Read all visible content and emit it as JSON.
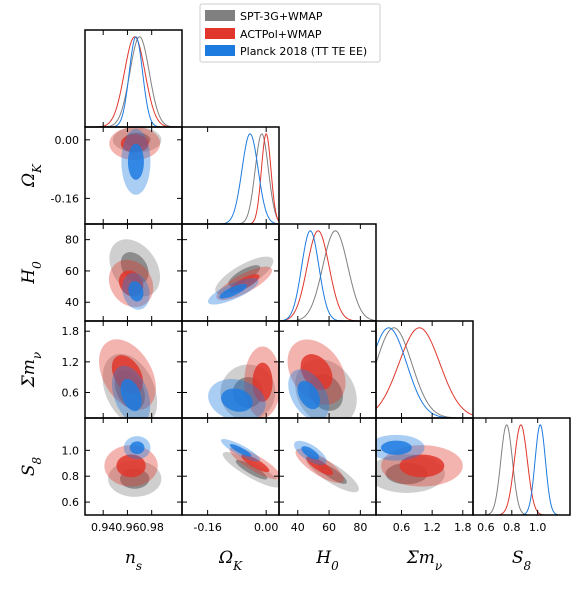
{
  "chart_data": {
    "type": "triangle-corner",
    "legend": {
      "placement": "top-center",
      "entries": [
        {
          "name": "SPT-3G+WMAP",
          "color": "#808080"
        },
        {
          "name": "ACTPol+WMAP",
          "color": "#e0362b"
        },
        {
          "name": "Planck 2018 (TT TE EE)",
          "color": "#1d7be0"
        }
      ]
    },
    "parameters": [
      {
        "key": "ns",
        "symbol": "n",
        "sub": "s",
        "range": [
          0.925,
          1.005
        ],
        "ticks": [
          0.94,
          0.96,
          0.98
        ],
        "tick_labels": [
          "0.94",
          "0.96",
          "0.98"
        ]
      },
      {
        "key": "ok",
        "symbol": "Ω",
        "sub": "K",
        "range": [
          -0.23,
          0.035
        ],
        "ticks": [
          -0.16,
          0.0
        ],
        "tick_labels": [
          "-0.16",
          "0.00"
        ]
      },
      {
        "key": "h0",
        "symbol": "H",
        "sub": "0",
        "range": [
          28,
          90
        ],
        "ticks": [
          40,
          60,
          80
        ],
        "tick_labels": [
          "40",
          "60",
          "80"
        ]
      },
      {
        "key": "mnu",
        "symbol": "Σm",
        "sub": "ν",
        "range": [
          0.1,
          2.0
        ],
        "ticks": [
          0.6,
          1.2,
          1.8
        ],
        "tick_labels": [
          "0.6",
          "1.2",
          "1.8"
        ]
      },
      {
        "key": "s8",
        "symbol": "S",
        "sub": "8",
        "range": [
          0.5,
          1.25
        ],
        "ticks": [
          0.6,
          0.8,
          1.0
        ],
        "tick_labels": [
          "0.6",
          "0.8",
          "1.0"
        ]
      }
    ],
    "x_tick_labels_bottom": [
      [
        "0.94",
        "0.96",
        "0.98"
      ],
      [
        "-0.16",
        "0.00"
      ],
      [
        "40",
        "60",
        "80"
      ],
      [
        "0.6",
        "1.2",
        "1.8"
      ],
      [
        "0.6",
        "0.8",
        "1.0"
      ]
    ],
    "y_tick_labels_left": {
      "ok": [
        "0.00",
        "-0.16"
      ],
      "h0": [
        "80",
        "60",
        "40"
      ],
      "mnu": [
        "1.8",
        "1.2",
        "0.6"
      ],
      "s8": [
        "1.0",
        "0.8",
        "0.6"
      ]
    },
    "marginals": {
      "ns": {
        "SPT-3G+WMAP": {
          "mean": 0.97,
          "sd": 0.008
        },
        "ACTPol+WMAP": {
          "mean": 0.966,
          "sd": 0.0085
        },
        "Planck 2018 (TT TE EE)": {
          "mean": 0.967,
          "sd": 0.0055
        }
      },
      "ok": {
        "SPT-3G+WMAP": {
          "mean": -0.012,
          "sd": 0.018
        },
        "ACTPol+WMAP": {
          "mean": 0.0,
          "sd": 0.013
        },
        "Planck 2018 (TT TE EE)": {
          "mean": -0.044,
          "sd": 0.022
        }
      },
      "h0": {
        "SPT-3G+WMAP": {
          "mean": 64,
          "sd": 8
        },
        "ACTPol+WMAP": {
          "mean": 53,
          "sd": 7
        },
        "Planck 2018 (TT TE EE)": {
          "mean": 48,
          "sd": 5.5
        }
      },
      "mnu": {
        "SPT-3G+WMAP": {
          "mean": 0.45,
          "sd": 0.35
        },
        "ACTPol+WMAP": {
          "mean": 0.95,
          "sd": 0.4
        },
        "Planck 2018 (TT TE EE)": {
          "mean": 0.35,
          "sd": 0.35
        }
      },
      "s8": {
        "SPT-3G+WMAP": {
          "mean": 0.76,
          "sd": 0.045
        },
        "ACTPol+WMAP": {
          "mean": 0.87,
          "sd": 0.05
        },
        "Planck 2018 (TT TE EE)": {
          "mean": 1.02,
          "sd": 0.04
        }
      }
    },
    "contours": [
      {
        "row": "ok",
        "col": "ns",
        "series": [
          {
            "name": "SPT-3G+WMAP",
            "cx": 0.968,
            "cy": 0.0,
            "rx": 0.02,
            "ry": 0.035,
            "rot": 0
          },
          {
            "name": "ACTPol+WMAP",
            "cx": 0.966,
            "cy": -0.01,
            "rx": 0.021,
            "ry": 0.045,
            "rot": 0
          },
          {
            "name": "Planck 2018 (TT TE EE)",
            "cx": 0.967,
            "cy": -0.06,
            "rx": 0.012,
            "ry": 0.09,
            "rot": 0
          }
        ]
      },
      {
        "row": "h0",
        "col": "ns",
        "series": [
          {
            "name": "SPT-3G+WMAP",
            "cx": 0.966,
            "cy": 62,
            "rx": 0.018,
            "ry": 20,
            "rot": -35
          },
          {
            "name": "ACTPol+WMAP",
            "cx": 0.963,
            "cy": 52,
            "rx": 0.017,
            "ry": 16,
            "rot": -35
          },
          {
            "name": "Planck 2018 (TT TE EE)",
            "cx": 0.967,
            "cy": 47,
            "rx": 0.011,
            "ry": 12,
            "rot": -15
          }
        ]
      },
      {
        "row": "h0",
        "col": "ok",
        "series": [
          {
            "name": "SPT-3G+WMAP",
            "cx": -0.06,
            "cy": 57,
            "rx": 0.09,
            "ry": 7,
            "rot": -30
          },
          {
            "name": "ACTPol+WMAP",
            "cx": -0.06,
            "cy": 52,
            "rx": 0.085,
            "ry": 6,
            "rot": -28
          },
          {
            "name": "Planck 2018 (TT TE EE)",
            "cx": -0.09,
            "cy": 47,
            "rx": 0.075,
            "ry": 5,
            "rot": -24
          }
        ]
      },
      {
        "row": "mnu",
        "col": "ns",
        "series": [
          {
            "name": "SPT-3G+WMAP",
            "cx": 0.962,
            "cy": 0.65,
            "rx": 0.02,
            "ry": 0.75,
            "rot": -25
          },
          {
            "name": "ACTPol+WMAP",
            "cx": 0.96,
            "cy": 0.95,
            "rx": 0.02,
            "ry": 0.75,
            "rot": -30
          },
          {
            "name": "Planck 2018 (TT TE EE)",
            "cx": 0.963,
            "cy": 0.55,
            "rx": 0.014,
            "ry": 0.6,
            "rot": -20
          }
        ]
      },
      {
        "row": "mnu",
        "col": "ok",
        "series": [
          {
            "name": "SPT-3G+WMAP",
            "cx": -0.05,
            "cy": 0.6,
            "rx": 0.075,
            "ry": 0.55,
            "rot": 20
          },
          {
            "name": "ACTPol+WMAP",
            "cx": -0.01,
            "cy": 0.8,
            "rx": 0.05,
            "ry": 0.7,
            "rot": 0
          },
          {
            "name": "Planck 2018 (TT TE EE)",
            "cx": -0.08,
            "cy": 0.45,
            "rx": 0.08,
            "ry": 0.4,
            "rot": 15
          }
        ]
      },
      {
        "row": "mnu",
        "col": "h0",
        "series": [
          {
            "name": "SPT-3G+WMAP",
            "cx": 58,
            "cy": 0.6,
            "rx": 18,
            "ry": 0.7,
            "rot": -35
          },
          {
            "name": "ACTPol+WMAP",
            "cx": 52,
            "cy": 1.0,
            "rx": 16,
            "ry": 0.7,
            "rot": -35
          },
          {
            "name": "Planck 2018 (TT TE EE)",
            "cx": 47,
            "cy": 0.55,
            "rx": 11,
            "ry": 0.55,
            "rot": -30
          }
        ]
      },
      {
        "row": "s8",
        "col": "ns",
        "series": [
          {
            "name": "SPT-3G+WMAP",
            "cx": 0.966,
            "cy": 0.78,
            "rx": 0.022,
            "ry": 0.14,
            "rot": 0
          },
          {
            "name": "ACTPol+WMAP",
            "cx": 0.963,
            "cy": 0.88,
            "rx": 0.022,
            "ry": 0.16,
            "rot": 0
          },
          {
            "name": "Planck 2018 (TT TE EE)",
            "cx": 0.968,
            "cy": 1.02,
            "rx": 0.011,
            "ry": 0.09,
            "rot": 0
          }
        ]
      },
      {
        "row": "s8",
        "col": "ok",
        "series": [
          {
            "name": "SPT-3G+WMAP",
            "cx": -0.04,
            "cy": 0.85,
            "rx": 0.09,
            "ry": 0.06,
            "rot": 30
          },
          {
            "name": "ACTPol+WMAP",
            "cx": -0.03,
            "cy": 0.9,
            "rx": 0.08,
            "ry": 0.06,
            "rot": 30
          },
          {
            "name": "Planck 2018 (TT TE EE)",
            "cx": -0.07,
            "cy": 1.0,
            "rx": 0.06,
            "ry": 0.04,
            "rot": 28
          }
        ]
      },
      {
        "row": "s8",
        "col": "h0",
        "series": [
          {
            "name": "SPT-3G+WMAP",
            "cx": 62,
            "cy": 0.82,
            "rx": 20,
            "ry": 0.07,
            "rot": 33
          },
          {
            "name": "ACTPol+WMAP",
            "cx": 54,
            "cy": 0.88,
            "rx": 18,
            "ry": 0.07,
            "rot": 33
          },
          {
            "name": "Planck 2018 (TT TE EE)",
            "cx": 48,
            "cy": 0.98,
            "rx": 12,
            "ry": 0.06,
            "rot": 33
          }
        ]
      },
      {
        "row": "s8",
        "col": "mnu",
        "series": [
          {
            "name": "SPT-3G+WMAP",
            "cx": 0.7,
            "cy": 0.82,
            "rx": 0.75,
            "ry": 0.15,
            "rot": 0
          },
          {
            "name": "ACTPol+WMAP",
            "cx": 1.0,
            "cy": 0.88,
            "rx": 0.8,
            "ry": 0.16,
            "rot": 0
          },
          {
            "name": "Planck 2018 (TT TE EE)",
            "cx": 0.5,
            "cy": 1.02,
            "rx": 0.55,
            "ry": 0.1,
            "rot": 0
          }
        ]
      }
    ]
  }
}
